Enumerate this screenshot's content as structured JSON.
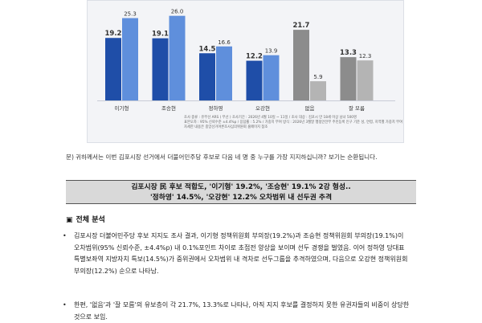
{
  "chart_data": {
    "type": "bar",
    "categories": [
      "이기형",
      "조승현",
      "정하영",
      "오강현",
      "없음",
      "잘 모름"
    ],
    "series": [
      {
        "values": [
          19.2,
          19.1,
          14.5,
          12.2,
          21.7,
          13.3
        ]
      },
      {
        "values": [
          25.3,
          26.0,
          16.6,
          13.9,
          5.9,
          12.3
        ]
      }
    ],
    "ylim": [
      0,
      30
    ],
    "colors": {
      "candidate_dark": "#1f4ea8",
      "candidate_light": "#5f8fdc",
      "none_dark": "#8c8c8c",
      "none_light": "#b4b4b4"
    },
    "note_lines": [
      "조사 종류 : 유무선 ARS ( 무선 ) 조사기간 : 2026년 4월 10일 ~ 11일 / 조사 대상 : 김포시 만 18세 이상 남녀 500명",
      "표본오차 : 95% 신뢰수준 ±4.4%p / 응답률 : 5.2% / 가중치 부여 방식 : 2026년 3월말 행정안전부 주민등록 인구 기준 성, 연령, 지역별 가중치 부여",
      "자세한 내용은 중앙선거여론조사심의위원회 홈페이지 참조"
    ]
  },
  "question": {
    "mark": "문)",
    "text": "귀하께서는 이번 김포시장 선거에서 더불어민주당 후보로 다음 네 명 중 누구를 가장 지지하십니까? 보기는 순환됩니다."
  },
  "summary": {
    "line1": "김포시장 民 후보 적합도, '이기형' 19.2%, '조승현' 19.1% 2강 형성..",
    "line2": "'정하영' 14.5%, '오강현' 12.2% 오차범위 내 선두권 추격"
  },
  "section": {
    "marker": "▣",
    "title": "전체 분석"
  },
  "paragraphs": [
    {
      "bullet": "•",
      "text": "김포시장 더불어민주당 후보 지지도 조사 결과, 이기형 정책위원회 부의장(19.2%)과 조승현 정책위원회 부의장(19.1%)이 오차범위(95% 신뢰수준, ±4.4%p) 내 0.1%포인트 차이로 초접전 양상을 보이며 선두 경쟁을 벌였음. 이어 정하영 당대표 특별보좌역 지방자치 특보(14.5%)가 중위권에서 오차범위 내 격차로 선두그룹을 추격하였으며, 다음으로 오강현 정책위원회 부의장(12.2%) 순으로 나타남."
    },
    {
      "bullet": "•",
      "text": "한편, '없음'과 '잘 모름'의 유보층이 각 21.7%, 13.3%로 나타나, 아직 지지 후보를 결정하지 못한 유권자들의 비중이 상당한 것으로 보임."
    }
  ]
}
